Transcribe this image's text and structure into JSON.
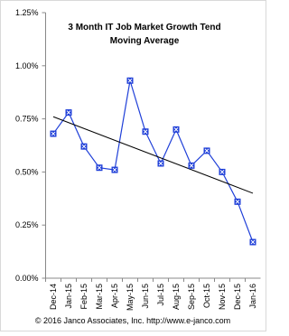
{
  "chart_data": {
    "type": "line",
    "title": "3 Month IT Job Market Growth Tend",
    "subtitle": "Moving Average",
    "footer": "© 2016 Janco Associates, Inc. http://www.e-janco.com",
    "categories": [
      "Dec-14",
      "Jan-15",
      "Feb-15",
      "Mar-15",
      "Apr-15",
      "May-15",
      "Jun-15",
      "Jul-15",
      "Aug-15",
      "Sep-15",
      "Oct-15",
      "Nov-15",
      "Dec-15",
      "Jan-16"
    ],
    "series": [
      {
        "color": "#1f3fd8",
        "values": [
          0.68,
          0.78,
          0.62,
          0.52,
          0.51,
          0.93,
          0.69,
          0.54,
          0.7,
          0.53,
          0.6,
          0.5,
          0.36,
          0.17
        ]
      }
    ],
    "trendline": {
      "color": "#000000",
      "values": [
        0.76,
        0.4
      ]
    },
    "ylim": [
      0,
      1.25
    ],
    "yticks": [
      {
        "value": 0,
        "label": "0.00%"
      },
      {
        "value": 0.25,
        "label": "0.25%"
      },
      {
        "value": 0.5,
        "label": "0.50%"
      },
      {
        "value": 0.75,
        "label": "0.75%"
      },
      {
        "value": 1.0,
        "label": "1.00%"
      },
      {
        "value": 1.25,
        "label": "1.25%"
      }
    ],
    "grid": false
  }
}
